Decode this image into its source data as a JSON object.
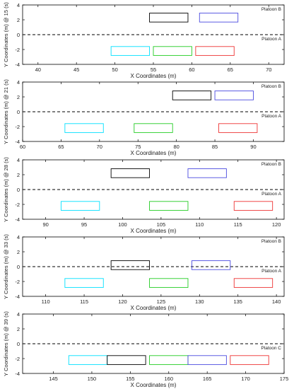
{
  "chart_data": [
    {
      "type": "scatter",
      "xlabel": "X Coordinates (m)",
      "ylabel": "Y Coordinates (m) @ 15 (s)",
      "xlim": [
        38,
        72
      ],
      "ylim": [
        -4,
        4
      ],
      "xticks": [
        40,
        45,
        50,
        55,
        60,
        65,
        70
      ],
      "yticks": [
        -4,
        -2,
        0,
        2,
        4
      ],
      "lane_line_y": 0,
      "annotations": [
        "Platoon B",
        "Platoon A"
      ],
      "vehicles": [
        {
          "x": 54.5,
          "y": 2.3,
          "color": "#000000"
        },
        {
          "x": 61.0,
          "y": 2.3,
          "color": "#4a4adf"
        },
        {
          "x": 49.5,
          "y": -2.2,
          "color": "#00e0ff"
        },
        {
          "x": 55.0,
          "y": -2.2,
          "color": "#22cc22"
        },
        {
          "x": 60.5,
          "y": -2.2,
          "color": "#ee3333"
        }
      ]
    },
    {
      "type": "scatter",
      "xlabel": "X Coordinates (m)",
      "ylabel": "Y Coordinates (m) @ 21 (s)",
      "xlim": [
        60,
        94
      ],
      "ylim": [
        -4,
        4
      ],
      "xticks": [
        60,
        65,
        70,
        75,
        80,
        85,
        90
      ],
      "yticks": [
        -4,
        -2,
        0,
        2,
        4
      ],
      "lane_line_y": 0,
      "annotations": [
        "Platoon B",
        "Platoon A"
      ],
      "vehicles": [
        {
          "x": 79.5,
          "y": 2.2,
          "color": "#000000"
        },
        {
          "x": 85.0,
          "y": 2.2,
          "color": "#4a4adf"
        },
        {
          "x": 65.5,
          "y": -2.2,
          "color": "#00e0ff"
        },
        {
          "x": 74.5,
          "y": -2.2,
          "color": "#22cc22"
        },
        {
          "x": 85.5,
          "y": -2.2,
          "color": "#ee3333"
        }
      ]
    },
    {
      "type": "scatter",
      "xlabel": "X Coordinates (m)",
      "ylabel": "Y Coordinates (m) @ 28 (s)",
      "xlim": [
        87,
        121
      ],
      "ylim": [
        -4,
        4
      ],
      "xticks": [
        90,
        95,
        100,
        105,
        110,
        115,
        120
      ],
      "yticks": [
        -4,
        -2,
        0,
        2,
        4
      ],
      "lane_line_y": 0,
      "annotations": [
        "Platoon B",
        "Platoon A"
      ],
      "vehicles": [
        {
          "x": 98.5,
          "y": 2.2,
          "color": "#000000"
        },
        {
          "x": 108.5,
          "y": 2.2,
          "color": "#4a4adf"
        },
        {
          "x": 92.0,
          "y": -2.2,
          "color": "#00e0ff"
        },
        {
          "x": 103.5,
          "y": -2.2,
          "color": "#22cc22"
        },
        {
          "x": 114.5,
          "y": -2.2,
          "color": "#ee3333"
        }
      ]
    },
    {
      "type": "scatter",
      "xlabel": "X Coordinates (m)",
      "ylabel": "Y Coordinates (m) @ 33 (s)",
      "xlim": [
        107,
        141
      ],
      "ylim": [
        -4,
        4
      ],
      "xticks": [
        110,
        115,
        120,
        125,
        130,
        135,
        140
      ],
      "yticks": [
        -4,
        -2,
        0,
        2,
        4
      ],
      "lane_line_y": 0,
      "annotations": [
        "Platoon B",
        "Platoon A"
      ],
      "vehicles": [
        {
          "x": 118.5,
          "y": 0.2,
          "color": "#000000"
        },
        {
          "x": 129.0,
          "y": 0.2,
          "color": "#4a4adf"
        },
        {
          "x": 112.5,
          "y": -2.2,
          "color": "#00e0ff"
        },
        {
          "x": 123.5,
          "y": -2.2,
          "color": "#22cc22"
        },
        {
          "x": 134.5,
          "y": -2.2,
          "color": "#ee3333"
        }
      ]
    },
    {
      "type": "scatter",
      "xlabel": "X Coordinates (m)",
      "ylabel": "Y Coordinates (m) @ 39 (s)",
      "xlim": [
        141,
        175
      ],
      "ylim": [
        -4,
        4
      ],
      "xticks": [
        145,
        150,
        155,
        160,
        165,
        170,
        175
      ],
      "yticks": [
        -4,
        -2,
        0,
        2,
        4
      ],
      "lane_line_y": 0,
      "annotations": [
        "Platoon C"
      ],
      "vehicles": [
        {
          "x": 147.0,
          "y": -2.2,
          "color": "#00e0ff"
        },
        {
          "x": 152.0,
          "y": -2.2,
          "color": "#000000"
        },
        {
          "x": 157.5,
          "y": -2.2,
          "color": "#22cc22"
        },
        {
          "x": 162.5,
          "y": -2.2,
          "color": "#4a4adf"
        },
        {
          "x": 168.0,
          "y": -2.2,
          "color": "#ee3333"
        }
      ]
    }
  ]
}
